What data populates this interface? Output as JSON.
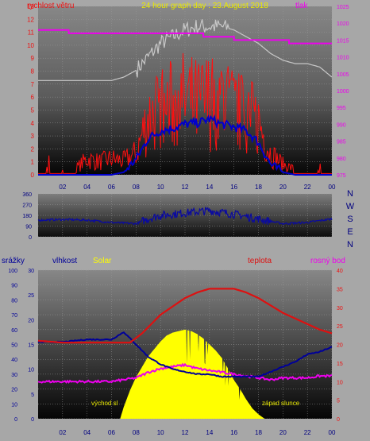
{
  "colors": {
    "background": "#a7a7a7",
    "plot_top": "#858585",
    "plot_bottom": "#060606",
    "wind_speed": "#ff1010",
    "wind_avg": "#0000cc",
    "pressure": "#ee00ee",
    "temp_bg": "#c8c8c8",
    "wind_dir": "#0a0aa0",
    "temperature": "#dd1111",
    "humidity": "#000099",
    "dewpoint": "#ee00ee",
    "solar": "#ffff00",
    "rain": "#0000cc"
  },
  "header": {
    "title": "24 hour graph day : 23.August 2018",
    "left_label": "rychlost větru",
    "right_label": "tlak"
  },
  "bottom_header": {
    "label1": "srážky",
    "label2": "vlhkost",
    "label3": "Solar",
    "label4": "teplota",
    "label5": "rosný bod"
  },
  "compass": {
    "n": "N",
    "w": "W",
    "s": "S",
    "e": "E",
    "n2": "N"
  },
  "annotations": {
    "sunrise": "východ sl",
    "sunset": "západ slunce"
  },
  "chart_data": [
    {
      "type": "line",
      "title": "24 hour graph day : 23.August 2018",
      "x_ticks": [
        "02",
        "04",
        "06",
        "08",
        "10",
        "12",
        "14",
        "16",
        "18",
        "20",
        "22",
        "00"
      ],
      "y_left_label": "rychlost větru",
      "y_left_ticks": [
        "0",
        "1",
        "2",
        "3",
        "4",
        "5",
        "6",
        "7",
        "8",
        "9",
        "10",
        "11",
        "12",
        "13"
      ],
      "y_left_range": [
        0,
        13
      ],
      "y_right_label": "tlak",
      "y_right_ticks": [
        "975",
        "980",
        "985",
        "990",
        "995",
        "1000",
        "1005",
        "1010",
        "1015",
        "1020",
        "1025"
      ],
      "y_right_range": [
        975,
        1025
      ],
      "series": [
        {
          "name": "rychlost větru",
          "axis": "left",
          "color": "#ff1010",
          "x": [
            0,
            1,
            2,
            3,
            4,
            5,
            6,
            7,
            8,
            9,
            10,
            11,
            12,
            13,
            14,
            15,
            16,
            17,
            18,
            19,
            20,
            21,
            22,
            23,
            24
          ],
          "values": [
            0.3,
            0.2,
            0.2,
            0.5,
            1.5,
            1.2,
            1.5,
            1.3,
            2,
            5.5,
            6,
            6.5,
            7,
            6.5,
            7,
            7,
            6,
            5.5,
            5,
            2,
            1,
            0.5,
            0.3,
            0.2,
            0.2
          ]
        },
        {
          "axis": "left",
          "color": "#0000cc",
          "x": [
            0,
            1,
            2,
            3,
            4,
            5,
            6,
            7,
            8,
            9,
            10,
            11,
            12,
            13,
            14,
            15,
            16,
            17,
            18,
            19,
            20,
            21,
            22,
            23,
            24
          ],
          "values": [
            0,
            0,
            0,
            0,
            0,
            0,
            0,
            0.2,
            1.2,
            2.8,
            3.4,
            3.6,
            3.9,
            4,
            4.3,
            3.9,
            3.7,
            3.4,
            2.5,
            0.8,
            0.2,
            0,
            0,
            0,
            0
          ]
        },
        {
          "name": "tlak",
          "axis": "right",
          "color": "#ee00ee",
          "x": [
            0,
            2.5,
            2.5,
            13.5,
            13.5,
            16,
            16,
            20.5,
            20.5,
            24
          ],
          "values": [
            1018,
            1018,
            1017,
            1017,
            1016,
            1016,
            1015,
            1015,
            1014,
            1014
          ]
        },
        {
          "axis": "right",
          "color": "#c8c8c8",
          "x": [
            0,
            0.5,
            4,
            6,
            7,
            8,
            9,
            10,
            11,
            12,
            13,
            14,
            15,
            16,
            17,
            18,
            19,
            20,
            21,
            22,
            23,
            24
          ],
          "values": [
            1003,
            1003,
            1003,
            1003,
            1004,
            1006,
            1010,
            1014,
            1016,
            1018,
            1019,
            1019,
            1019,
            1018,
            1016,
            1014,
            1011,
            1009,
            1008,
            1008,
            1007,
            1004
          ]
        }
      ]
    },
    {
      "type": "line",
      "y_ticks": [
        "0",
        "90",
        "180",
        "270",
        "360"
      ],
      "y_range": [
        0,
        360
      ],
      "series": [
        {
          "color": "#0a0aa0",
          "x": [
            0,
            2,
            4,
            6,
            8,
            9,
            10,
            12,
            14,
            16,
            18,
            20,
            22,
            24
          ],
          "values": [
            140,
            145,
            140,
            120,
            110,
            150,
            180,
            200,
            220,
            190,
            150,
            110,
            120,
            150
          ]
        }
      ]
    },
    {
      "type": "area",
      "x_ticks": [
        "02",
        "04",
        "06",
        "08",
        "10",
        "12",
        "14",
        "16",
        "18",
        "20",
        "22",
        "00"
      ],
      "axes": {
        "srážky": {
          "ticks": [
            "0",
            "10",
            "20",
            "30",
            "40",
            "50",
            "60",
            "70",
            "80",
            "90",
            "100"
          ],
          "range": [
            0,
            100
          ]
        },
        "vlhkost": {
          "ticks": [
            "0",
            "5",
            "10",
            "15",
            "20",
            "25",
            "30"
          ],
          "range": [
            0,
            30
          ]
        },
        "teplota": {
          "ticks": [
            "0",
            "5",
            "10",
            "15",
            "20",
            "25",
            "30",
            "35",
            "40"
          ],
          "range": [
            0,
            40
          ]
        }
      },
      "series": [
        {
          "name": "teplota",
          "axis": "teplota",
          "color": "#dd1111",
          "x": [
            0,
            2,
            4,
            6,
            7.5,
            8.5,
            10,
            12,
            13,
            14,
            15,
            16,
            17,
            18,
            19,
            20,
            21,
            22,
            23,
            24
          ],
          "values": [
            21,
            20.5,
            20.5,
            20.5,
            20.5,
            23,
            28,
            32.5,
            34,
            35,
            35,
            35,
            34,
            32.5,
            30.5,
            28.5,
            27,
            25.5,
            24,
            23
          ]
        },
        {
          "name": "vlhkost",
          "axis": "vlhkost",
          "color": "#000099",
          "x": [
            0,
            2,
            4,
            6,
            7,
            8,
            9,
            10,
            11,
            12,
            13,
            14,
            15,
            16,
            17,
            18,
            19,
            20,
            21,
            22,
            23,
            24
          ],
          "values": [
            15.5,
            15.5,
            16,
            16,
            17.5,
            15,
            12.5,
            11,
            10,
            9.5,
            9,
            9,
            8.5,
            8.5,
            8.5,
            8.5,
            9.5,
            10.5,
            11.5,
            13,
            13.5,
            14.5
          ]
        },
        {
          "name": "rosný bod",
          "axis": "teplota",
          "color": "#ee00ee",
          "x": [
            0,
            2,
            4,
            6,
            7,
            8,
            9,
            10,
            11,
            12,
            13,
            14,
            15,
            16,
            17,
            18,
            19,
            20,
            21,
            22,
            23,
            24
          ],
          "values": [
            10,
            10,
            10,
            10,
            10.5,
            11,
            12.5,
            13.5,
            14,
            14.5,
            13.5,
            13,
            12.5,
            12,
            11.5,
            11,
            10.5,
            11,
            11,
            11,
            11.5,
            11.5
          ]
        },
        {
          "name": "Solar",
          "axis": "srážky",
          "color": "#ffff00",
          "x": [
            6.7,
            7,
            7.5,
            8,
            8.5,
            9,
            9.5,
            10,
            10.5,
            11,
            11.5,
            12,
            12.5,
            13,
            13.5,
            14,
            14.5,
            15,
            15.5,
            16,
            16.5,
            17,
            17.5,
            18,
            18.5
          ],
          "values": [
            0,
            8,
            19,
            28,
            35,
            42,
            47,
            52,
            56,
            58,
            59,
            60,
            59,
            57,
            54,
            50,
            46,
            41,
            34,
            26,
            20,
            13,
            7,
            3,
            0
          ]
        }
      ]
    }
  ]
}
